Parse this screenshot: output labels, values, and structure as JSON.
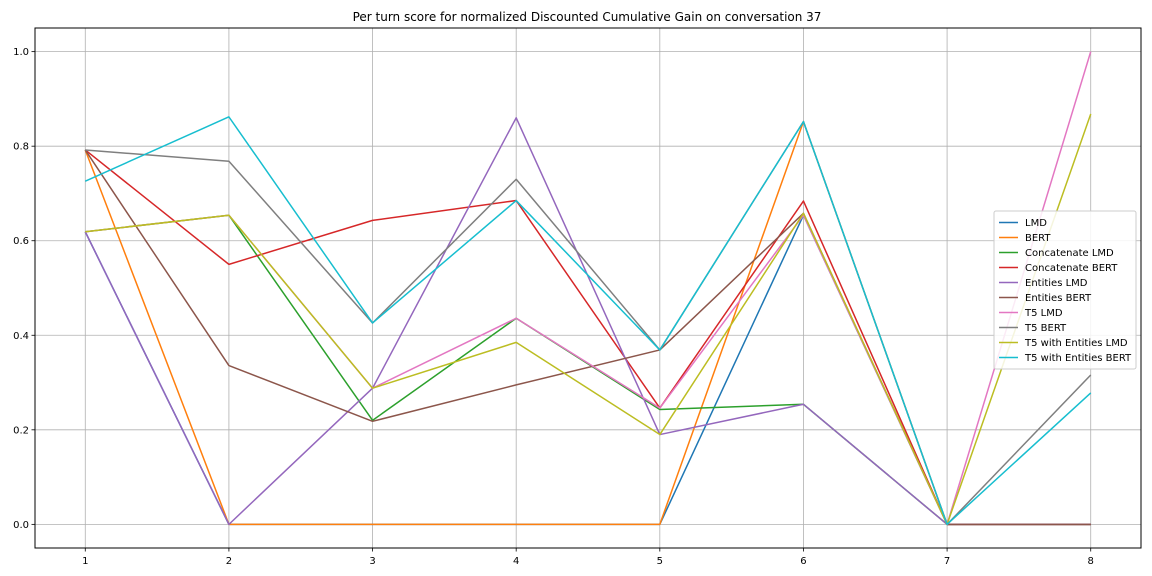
{
  "chart_data": {
    "type": "line",
    "title": "Per turn score for normalized Discounted Cumulative Gain on conversation 37",
    "xlabel": "",
    "ylabel": "",
    "x": [
      1,
      2,
      3,
      4,
      5,
      6,
      7,
      8
    ],
    "x_ticks": [
      "1",
      "2",
      "3",
      "4",
      "5",
      "6",
      "7",
      "8"
    ],
    "y_ticks": [
      "0.0",
      "0.2",
      "0.4",
      "0.6",
      "0.8",
      "1.0"
    ],
    "xlim": [
      0.65,
      8.35
    ],
    "ylim": [
      -0.05,
      1.05
    ],
    "grid": true,
    "legend_position": "center-right",
    "series": [
      {
        "name": "LMD",
        "color": "#1f77b4",
        "values": [
          0.619,
          0.0,
          0.0,
          0.0,
          0.0,
          0.654,
          0.0,
          0.0
        ]
      },
      {
        "name": "BERT",
        "color": "#ff7f0e",
        "values": [
          0.792,
          0.0,
          0.0,
          0.0,
          0.0,
          0.852,
          0.0,
          0.0
        ]
      },
      {
        "name": "Concatenate LMD",
        "color": "#2ca02c",
        "values": [
          0.619,
          0.654,
          0.22,
          0.436,
          0.243,
          0.254,
          0.0,
          0.0
        ]
      },
      {
        "name": "Concatenate BERT",
        "color": "#d62728",
        "values": [
          0.792,
          0.55,
          0.643,
          0.685,
          0.246,
          0.684,
          0.0,
          0.0
        ]
      },
      {
        "name": "Entities LMD",
        "color": "#9467bd",
        "values": [
          0.619,
          0.0,
          0.288,
          0.86,
          0.19,
          0.254,
          0.0,
          0.0
        ]
      },
      {
        "name": "Entities BERT",
        "color": "#8c564b",
        "values": [
          0.792,
          0.336,
          0.218,
          0.295,
          0.369,
          0.658,
          0.0,
          0.0
        ]
      },
      {
        "name": "T5 LMD",
        "color": "#e377c2",
        "values": [
          0.619,
          0.654,
          0.288,
          0.436,
          0.246,
          0.654,
          0.0,
          1.0
        ]
      },
      {
        "name": "T5 BERT",
        "color": "#7f7f7f",
        "values": [
          0.792,
          0.768,
          0.426,
          0.73,
          0.369,
          0.852,
          0.0,
          0.316
        ]
      },
      {
        "name": "T5 with Entities LMD",
        "color": "#bcbd22",
        "values": [
          0.619,
          0.654,
          0.288,
          0.385,
          0.19,
          0.658,
          0.0,
          0.868
        ]
      },
      {
        "name": "T5 with Entities BERT",
        "color": "#17becf",
        "values": [
          0.726,
          0.862,
          0.426,
          0.685,
          0.369,
          0.852,
          0.0,
          0.278
        ]
      }
    ]
  }
}
